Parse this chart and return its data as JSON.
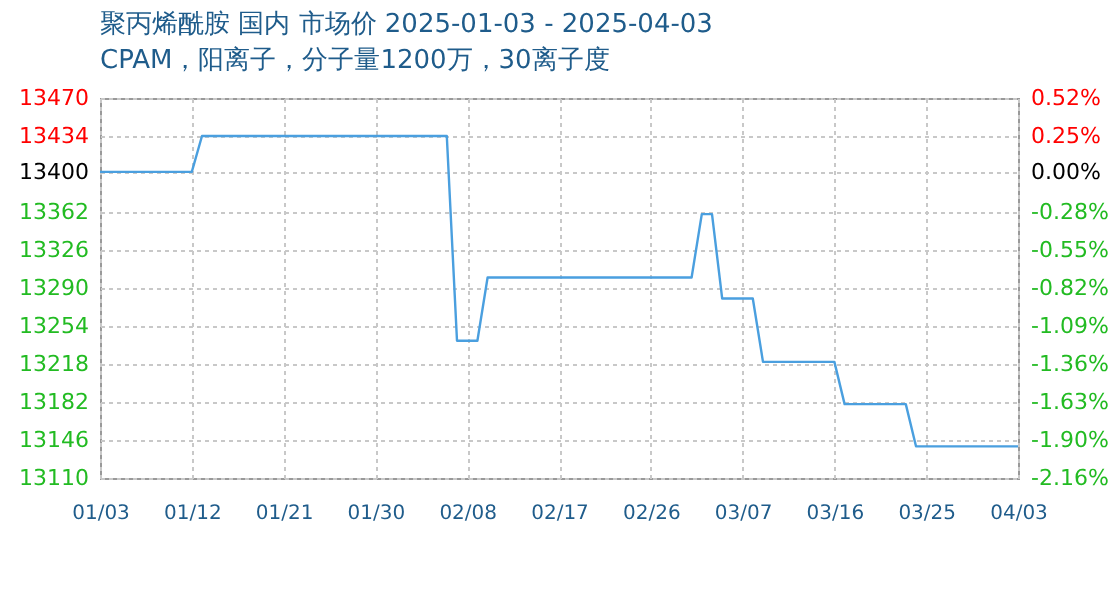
{
  "chart_data": {
    "type": "line",
    "title": "聚丙烯酰胺 国内 市场价 2025-01-03 - 2025-04-03",
    "subtitle": "CPAM，阳离子，分子量1200万，30离子度",
    "x": [
      "2025-01-03",
      "2025-01-12",
      "2025-01-13",
      "2025-02-06",
      "2025-02-07",
      "2025-02-09",
      "2025-02-10",
      "2025-03-02",
      "2025-03-03",
      "2025-03-04",
      "2025-03-05",
      "2025-03-08",
      "2025-03-09",
      "2025-03-16",
      "2025-03-17",
      "2025-03-23",
      "2025-03-24",
      "2025-04-03"
    ],
    "series": [
      {
        "color": "#4a9fdf",
        "values": [
          13400,
          13400,
          13434,
          13434,
          13240,
          13240,
          13300,
          13300,
          13360,
          13360,
          13280,
          13280,
          13220,
          13220,
          13180,
          13180,
          13140,
          13140
        ]
      }
    ],
    "xlim": [
      "2025-01-03",
      "2025-04-03"
    ],
    "xticks": [
      {
        "value": "2025-01-03",
        "label": "01/03"
      },
      {
        "value": "2025-01-12",
        "label": "01/12"
      },
      {
        "value": "2025-01-21",
        "label": "01/21"
      },
      {
        "value": "2025-01-30",
        "label": "01/30"
      },
      {
        "value": "2025-02-08",
        "label": "02/08"
      },
      {
        "value": "2025-02-17",
        "label": "02/17"
      },
      {
        "value": "2025-02-26",
        "label": "02/26"
      },
      {
        "value": "2025-03-07",
        "label": "03/07"
      },
      {
        "value": "2025-03-16",
        "label": "03/16"
      },
      {
        "value": "2025-03-25",
        "label": "03/25"
      },
      {
        "value": "2025-04-03",
        "label": "04/03"
      }
    ],
    "ylim": [
      13110,
      13470
    ],
    "yticks": [
      13110,
      13146,
      13182,
      13218,
      13254,
      13290,
      13326,
      13362,
      13400,
      13434,
      13470
    ],
    "y2lim": [
      -2.164,
      0.522
    ],
    "y2ticks": [
      {
        "value": -2.164,
        "label": "-2.16%"
      },
      {
        "value": -1.896,
        "label": "-1.90%"
      },
      {
        "value": -1.627,
        "label": "-1.63%"
      },
      {
        "value": -1.358,
        "label": "-1.36%"
      },
      {
        "value": -1.09,
        "label": "-1.09%"
      },
      {
        "value": -0.821,
        "label": "-0.82%"
      },
      {
        "value": -0.552,
        "label": "-0.55%"
      },
      {
        "value": -0.284,
        "label": "-0.28%"
      },
      {
        "value": 0,
        "label": "0.00%"
      },
      {
        "value": 0.254,
        "label": "0.25%"
      },
      {
        "value": 0.522,
        "label": "0.52%"
      }
    ],
    "grid": true
  }
}
